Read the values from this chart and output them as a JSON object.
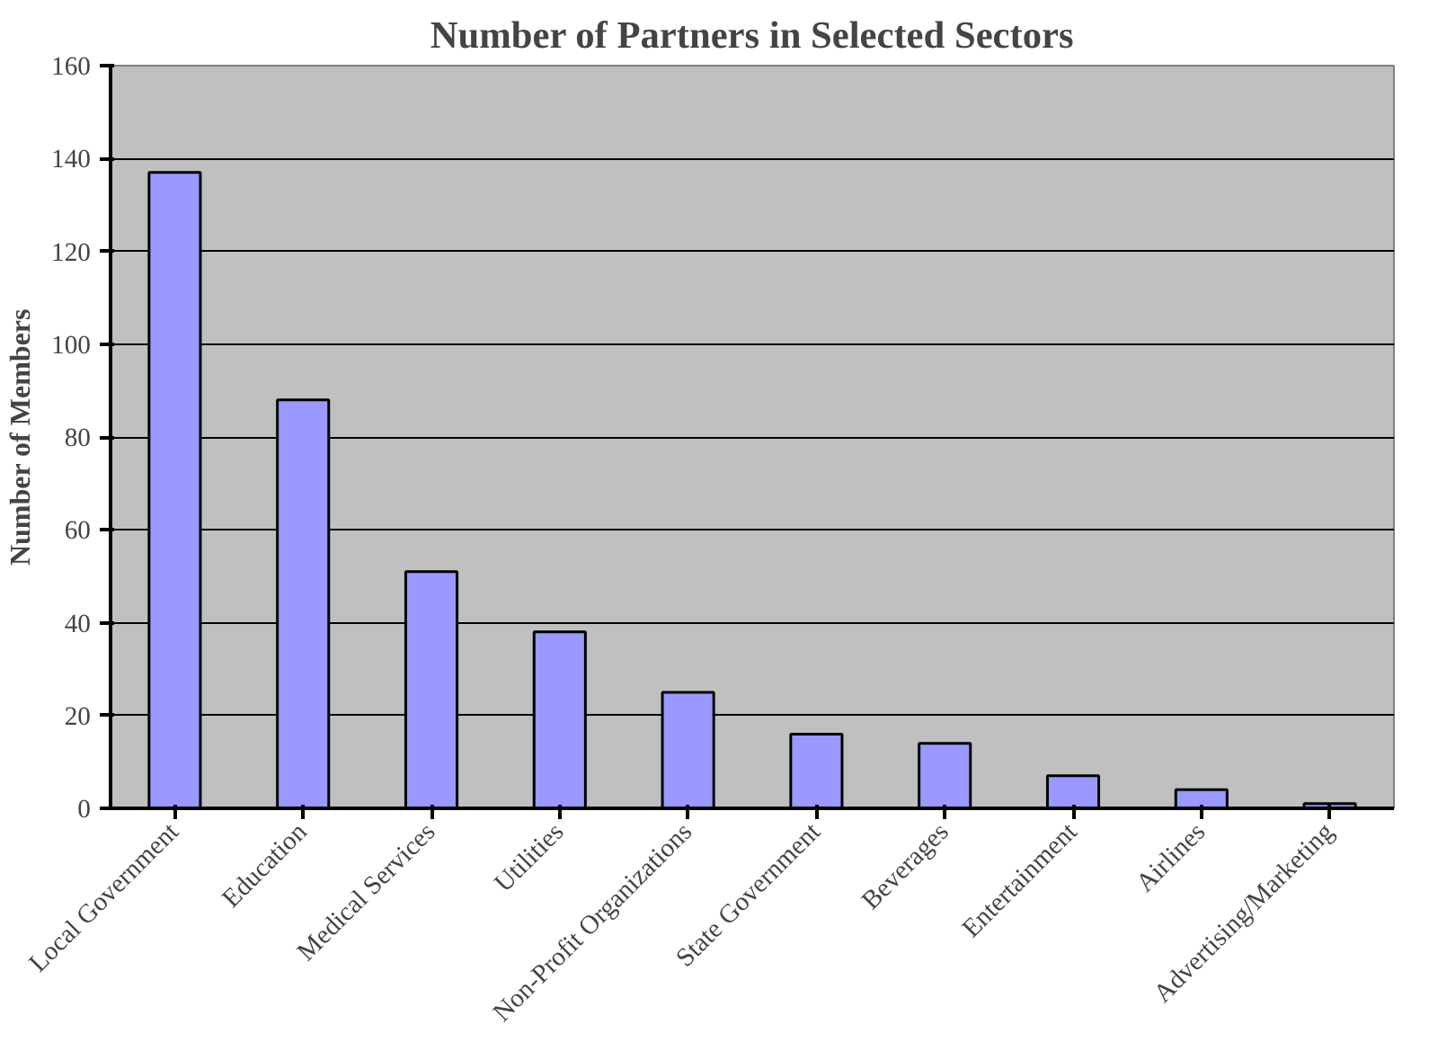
{
  "chart_data": {
    "type": "bar",
    "title": "Number of Partners in Selected Sectors",
    "ylabel": "Number of Members",
    "categories": [
      "Local Government",
      "Education",
      "Medical Services",
      "Utilities",
      "Non-Profit Organizations",
      "State Government",
      "Beverages",
      "Entertainment",
      "Airlines",
      "Advertising/Marketing"
    ],
    "values": [
      137,
      88,
      51,
      38,
      25,
      16,
      14,
      7,
      4,
      1
    ],
    "color": "#9999ff",
    "ylim": [
      0,
      160
    ],
    "yticks": [
      0,
      20,
      40,
      60,
      80,
      100,
      120,
      140,
      160
    ],
    "grid": "y"
  }
}
